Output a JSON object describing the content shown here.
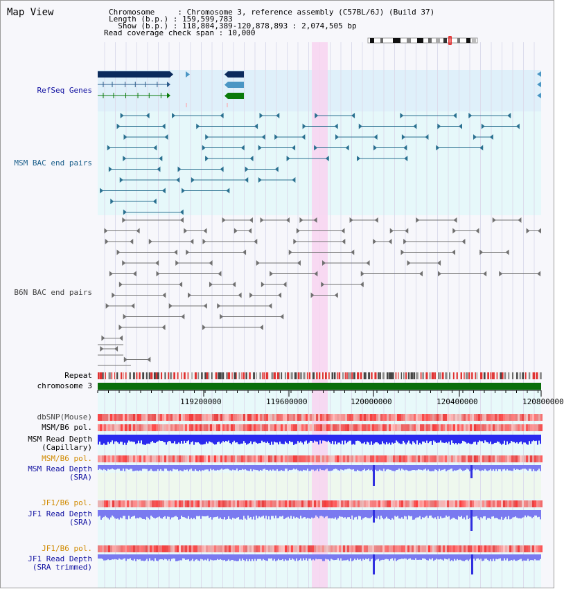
{
  "title": "Map View",
  "info": {
    "chromosome": "Chromosome     : Chromosome 3, reference assembly (C57BL/6J) (Build 37)",
    "length": "Length (b.p.) : 159,599,783",
    "show": "  Show (b.p.) : 118,804,389-120,878,893 : 2,074,505 bp",
    "read_coverage": "Read coverage check span : 10,000"
  },
  "tracks": {
    "refseq": "RefSeq Genes",
    "msm_bac": "MSM BAC end pairs",
    "b6n_bac": "B6N BAC end pairs",
    "repeat": "Repeat",
    "chromosome": "chromosome 3",
    "dbsnp": "dbSNP(Mouse)",
    "msm_b6_pol": "MSM/B6 pol.",
    "msm_read_depth_cap": "MSM Read Depth\n(Capillary)",
    "msm_b6_pol2": "MSM/B6 pol.",
    "msm_read_depth_sra": "MSM Read Depth\n(SRA)",
    "jf1_b6_pol": "JF1/B6 pol.",
    "jf1_read_depth_sra": "JF1 Read Depth\n(SRA)",
    "jf1_b6_pol2": "JF1/B6 pol.",
    "jf1_read_depth_trimmed": "JF1 Read Depth\n(SRA trimmed)"
  },
  "axis": {
    "ticks": [
      "119200000",
      "119600000",
      "120000000",
      "120400000",
      "120800000"
    ]
  },
  "colors": {
    "refseq_bg": "#dff0fa",
    "msm_bg": "#e6f8fa",
    "lower_bg": "#e8f9fa",
    "highlight": "#f8d4f0",
    "navy": "#0c2b5c",
    "steel": "#4a96c4",
    "green": "#0a7a0a",
    "teal": "#2a7090",
    "gray": "#707070",
    "repeat_red": "#e03030",
    "chrom_green": "#0a6e0a",
    "depth_blue": "#2a2aee",
    "depth_light": "#7a7af0"
  }
}
